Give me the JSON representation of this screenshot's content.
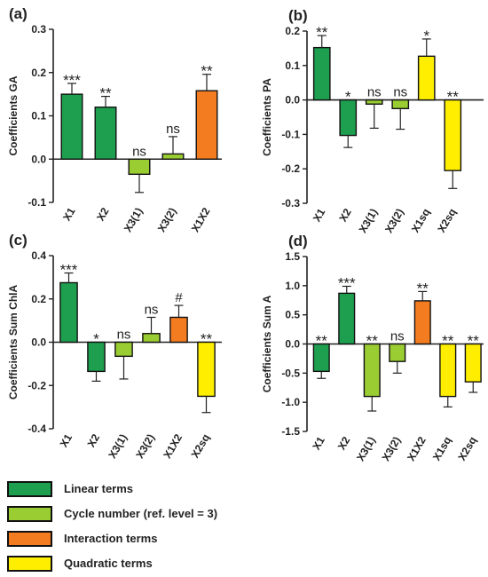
{
  "colors": {
    "linear": "#1e9e4f",
    "cycle": "#9acd32",
    "interaction": "#f47c20",
    "quadratic": "#ffee00"
  },
  "legend": [
    {
      "key": "linear",
      "label": "Linear terms"
    },
    {
      "key": "cycle",
      "label": "Cycle number (ref. level = 3)"
    },
    {
      "key": "interaction",
      "label": "Interaction terms"
    },
    {
      "key": "quadratic",
      "label": "Quadratic terms"
    }
  ],
  "chart_data": [
    {
      "type": "bar",
      "panel": "(a)",
      "ylabel": "Coefficients GA",
      "ylim": [
        -0.1,
        0.3
      ],
      "yticks": [
        -0.1,
        0.0,
        0.1,
        0.2,
        0.3
      ],
      "ytick_labels": [
        "-0.1",
        "0.0",
        "0.1",
        "0.2",
        "0.3"
      ],
      "categories": [
        "X1",
        "X2",
        "X3(1)",
        "X3(2)",
        "X1X2"
      ],
      "groups": [
        "linear",
        "linear",
        "cycle",
        "cycle",
        "interaction"
      ],
      "values": [
        0.15,
        0.12,
        -0.035,
        0.012,
        0.158
      ],
      "errors": [
        0.025,
        0.025,
        0.042,
        0.04,
        0.038
      ],
      "significance": [
        "***",
        "**",
        "ns",
        "ns",
        "**"
      ]
    },
    {
      "type": "bar",
      "panel": "(b)",
      "ylabel": "Coefficients  PA",
      "ylim": [
        -0.3,
        0.2
      ],
      "yticks": [
        -0.3,
        -0.2,
        -0.1,
        0.0,
        0.1,
        0.2
      ],
      "ytick_labels": [
        "-0.3",
        "-0.2",
        "-0.1",
        "0.0",
        "0.1",
        "0.2"
      ],
      "categories": [
        "X1",
        "X2",
        "X3(1)",
        "X3(2)",
        "X1sq",
        "X2sq"
      ],
      "groups": [
        "linear",
        "linear",
        "cycle",
        "cycle",
        "quadratic",
        "quadratic"
      ],
      "values": [
        0.152,
        -0.103,
        -0.012,
        -0.025,
        0.127,
        -0.205
      ],
      "errors": [
        0.035,
        0.035,
        0.07,
        0.06,
        0.05,
        0.052
      ],
      "significance": [
        "**",
        "*",
        "ns",
        "ns",
        "*",
        "**"
      ]
    },
    {
      "type": "bar",
      "panel": "(c)",
      "ylabel": "Coefficients Sum ChlA",
      "ylim": [
        -0.4,
        0.4
      ],
      "yticks": [
        -0.4,
        -0.2,
        0.0,
        0.2,
        0.4
      ],
      "ytick_labels": [
        "-0.4",
        "-0.2",
        "0.0",
        "0.2",
        "0.4"
      ],
      "categories": [
        "X1",
        "X2",
        "X3(1)",
        "X3(2)",
        "X1X2",
        "X2sq"
      ],
      "groups": [
        "linear",
        "linear",
        "cycle",
        "cycle",
        "interaction",
        "quadratic"
      ],
      "values": [
        0.275,
        -0.135,
        -0.065,
        0.04,
        0.115,
        -0.25
      ],
      "errors": [
        0.045,
        0.045,
        0.105,
        0.075,
        0.055,
        0.075
      ],
      "significance": [
        "***",
        "*",
        "ns",
        "ns",
        "#",
        "**"
      ]
    },
    {
      "type": "bar",
      "panel": "(d)",
      "ylabel": "Coefficients Sum A",
      "ylim": [
        -1.5,
        1.5
      ],
      "yticks": [
        -1.5,
        -1.0,
        -0.5,
        0.0,
        0.5,
        1.0,
        1.5
      ],
      "ytick_labels": [
        "-1.5",
        "-1.0",
        "-0.5",
        "0.0",
        "0.5",
        "1.0",
        "1.5"
      ],
      "categories": [
        "X1",
        "X2",
        "X3(1)",
        "X3(2)",
        "X1X2",
        "X1sq",
        "X2sq"
      ],
      "groups": [
        "linear",
        "linear",
        "cycle",
        "cycle",
        "interaction",
        "quadratic",
        "quadratic"
      ],
      "values": [
        -0.47,
        0.87,
        -0.9,
        -0.3,
        0.74,
        -0.9,
        -0.65
      ],
      "errors": [
        0.12,
        0.12,
        0.25,
        0.2,
        0.16,
        0.18,
        0.18
      ],
      "significance": [
        "**",
        "***",
        "**",
        "ns",
        "**",
        "**",
        "**"
      ]
    }
  ]
}
